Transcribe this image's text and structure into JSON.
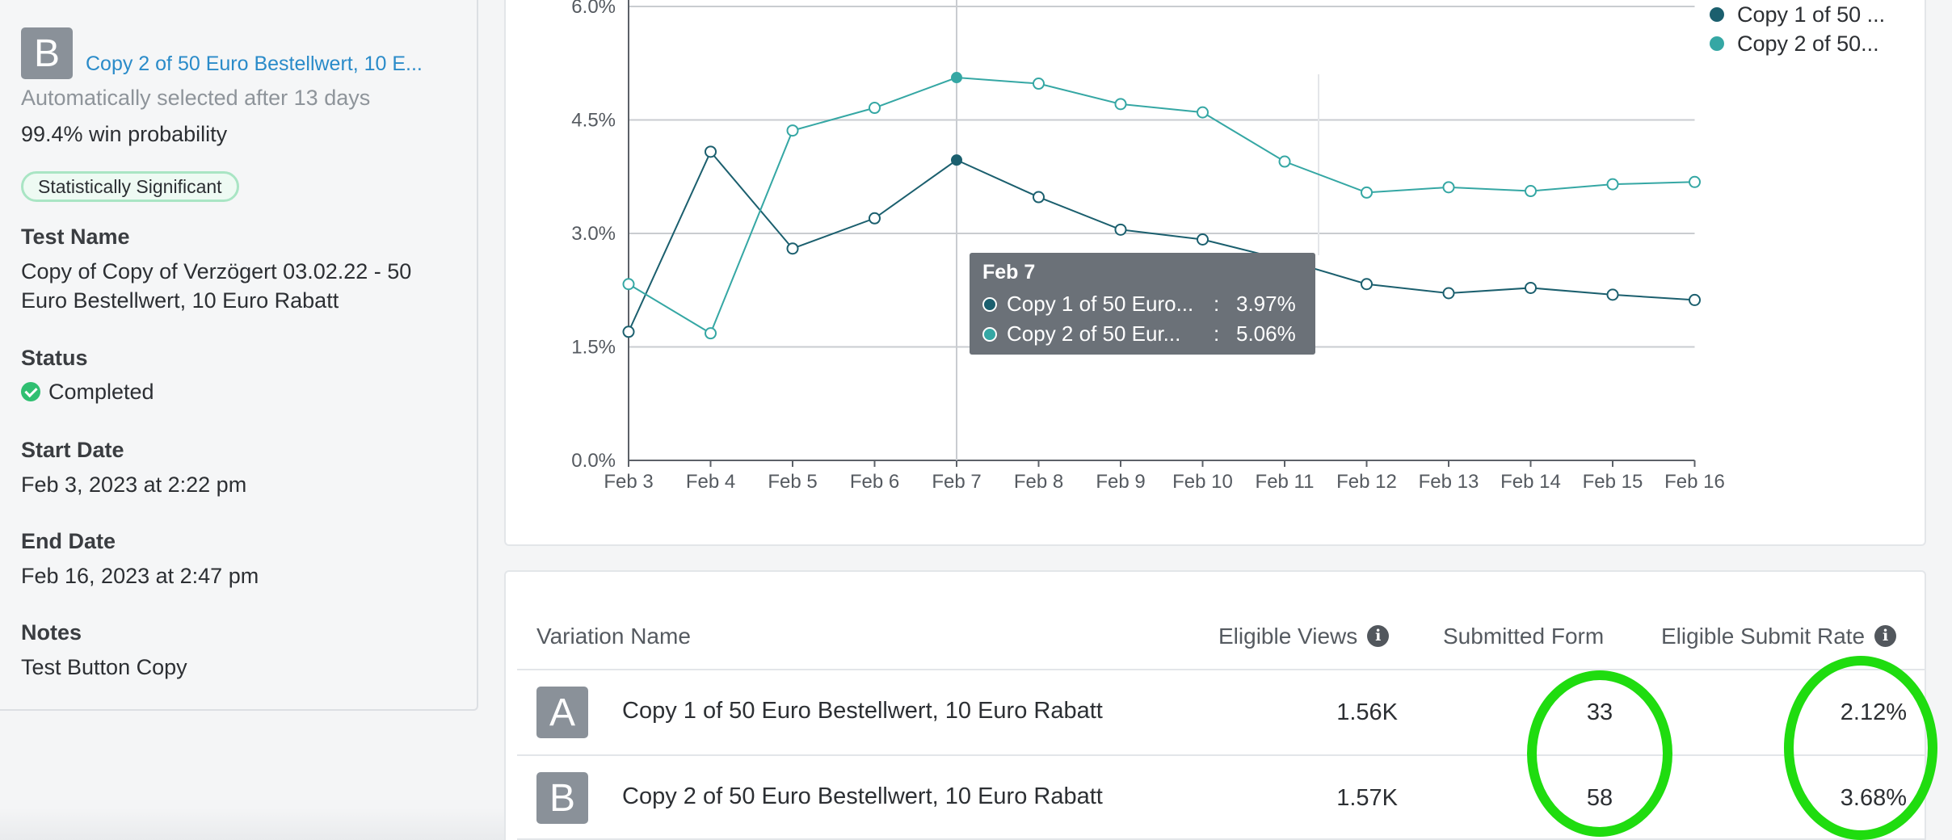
{
  "sidebar": {
    "variation_letter": "B",
    "variation_link": "Copy 2 of 50 Euro Bestellwert, 10 E...",
    "auto_selected": "Automatically selected after 13 days",
    "win_probability": "99.4% win probability",
    "significance_badge": "Statistically Significant",
    "test_name_label": "Test Name",
    "test_name_line1": "Copy of Copy of Verzögert 03.02.22 - 50",
    "test_name_line2": "Euro Bestellwert, 10 Euro Rabatt",
    "status_label": "Status",
    "status_value": "Completed",
    "start_date_label": "Start Date",
    "start_date_value": "Feb 3, 2023 at 2:22 pm",
    "end_date_label": "End Date",
    "end_date_value": "Feb 16, 2023 at 2:47 pm",
    "notes_label": "Notes",
    "notes_value": "Test Button Copy"
  },
  "chart_data": {
    "type": "line",
    "x": [
      "Feb 3",
      "Feb 4",
      "Feb 5",
      "Feb 6",
      "Feb 7",
      "Feb 8",
      "Feb 9",
      "Feb 10",
      "Feb 11",
      "Feb 12",
      "Feb 13",
      "Feb 14",
      "Feb 15",
      "Feb 16"
    ],
    "y_ticks": [
      "0.0%",
      "1.5%",
      "3.0%",
      "4.5%",
      "6.0%"
    ],
    "ylim": [
      0,
      6
    ],
    "y_unit": "%",
    "grid": "horizontal",
    "legend_position": "top-right",
    "series": [
      {
        "name": "Copy 1 of 50 ...",
        "color": "#1b5f6e",
        "values": [
          1.7,
          4.08,
          2.8,
          3.2,
          3.97,
          3.48,
          3.05,
          2.92,
          2.65,
          2.33,
          2.21,
          2.28,
          2.19,
          2.12
        ]
      },
      {
        "name": "Copy 2 of 50...",
        "color": "#35a7a4",
        "values": [
          2.33,
          1.68,
          4.36,
          4.66,
          5.06,
          4.98,
          4.71,
          4.6,
          3.95,
          3.54,
          3.61,
          3.56,
          3.65,
          3.68
        ]
      }
    ],
    "hover_index": 4,
    "tooltip": {
      "title": "Feb 7",
      "rows": [
        {
          "name": "Copy 1 of 50 Euro...",
          "sep": ":",
          "value": "3.97%",
          "color": "#1b5f6e"
        },
        {
          "name": "Copy 2 of 50 Eur...",
          "sep": ":",
          "value": "5.06%",
          "color": "#35a7a4"
        }
      ]
    }
  },
  "table": {
    "headers": {
      "variation_name": "Variation Name",
      "eligible_views": "Eligible Views",
      "submitted_form": "Submitted Form",
      "eligible_submit_rate": "Eligible Submit Rate"
    },
    "rows": [
      {
        "letter": "A",
        "name": "Copy 1 of 50 Euro Bestellwert, 10 Euro Rabatt",
        "views": "1.56K",
        "submitted": "33",
        "rate": "2.12%"
      },
      {
        "letter": "B",
        "name": "Copy 2 of 50 Euro Bestellwert, 10 Euro Rabatt",
        "views": "1.57K",
        "submitted": "58",
        "rate": "3.68%"
      }
    ],
    "highlight_color": "#1fdc0f"
  }
}
